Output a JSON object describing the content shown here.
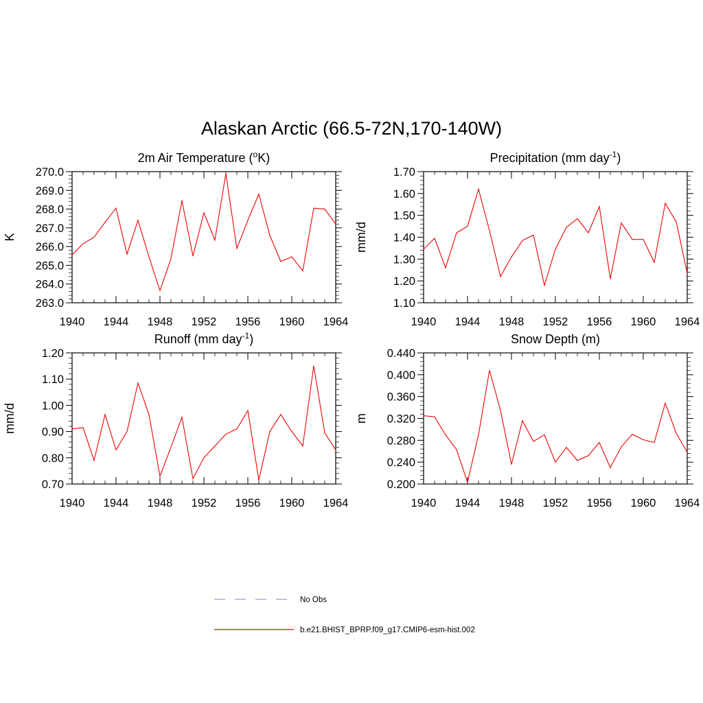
{
  "title": "Alaskan Arctic (66.5-72N,170-140W)",
  "legend": [
    {
      "label": "No Obs",
      "color": "#9999ee",
      "dash": true
    },
    {
      "label": "b.e21.BHIST_BPRP.f09_g17.CMIP6-esm-hist.002",
      "color": "#ee0000",
      "dash": false
    }
  ],
  "line_color": "#ee0000",
  "chart_data": [
    {
      "type": "line",
      "title": "2m Air Temperature (",
      "title_sup": "o",
      "title_tail": "K)",
      "ylabel": "K",
      "xlim": [
        1940,
        1964
      ],
      "ylim": [
        263.0,
        270.0
      ],
      "xticks": [
        1940,
        1944,
        1948,
        1952,
        1956,
        1960,
        1964
      ],
      "yticks": [
        "263.0",
        "264.0",
        "265.0",
        "266.0",
        "267.0",
        "268.0",
        "269.0",
        "270.0"
      ],
      "yminor": 0.2,
      "x": [
        1940,
        1941,
        1942,
        1943,
        1944,
        1945,
        1946,
        1947,
        1948,
        1949,
        1950,
        1951,
        1952,
        1953,
        1954,
        1955,
        1956,
        1957,
        1958,
        1959,
        1960,
        1961,
        1962,
        1963,
        1964
      ],
      "values": [
        265.55,
        266.15,
        266.5,
        267.3,
        268.05,
        265.6,
        267.4,
        265.45,
        263.65,
        265.35,
        268.45,
        265.5,
        267.8,
        266.35,
        269.9,
        265.9,
        267.4,
        268.8,
        266.6,
        265.2,
        265.45,
        264.7,
        268.05,
        268.0,
        267.2
      ]
    },
    {
      "type": "line",
      "title": "Precipitation (mm day",
      "title_sup": "-1",
      "title_tail": ")",
      "ylabel": "mm/d",
      "xlim": [
        1940,
        1964
      ],
      "ylim": [
        1.1,
        1.7
      ],
      "xticks": [
        1940,
        1944,
        1948,
        1952,
        1956,
        1960,
        1964
      ],
      "yticks": [
        "1.10",
        "1.20",
        "1.30",
        "1.40",
        "1.50",
        "1.60",
        "1.70"
      ],
      "yminor": 0.02,
      "x": [
        1940,
        1941,
        1942,
        1943,
        1944,
        1945,
        1946,
        1947,
        1948,
        1949,
        1950,
        1951,
        1952,
        1953,
        1954,
        1955,
        1956,
        1957,
        1958,
        1959,
        1960,
        1961,
        1962,
        1963,
        1964
      ],
      "values": [
        1.345,
        1.395,
        1.26,
        1.42,
        1.45,
        1.62,
        1.43,
        1.22,
        1.31,
        1.385,
        1.41,
        1.18,
        1.345,
        1.445,
        1.485,
        1.42,
        1.54,
        1.21,
        1.465,
        1.39,
        1.39,
        1.285,
        1.555,
        1.47,
        1.235
      ]
    },
    {
      "type": "line",
      "title": "Runoff (mm day",
      "title_sup": "-1",
      "title_tail": ")",
      "ylabel": "mm/d",
      "xlim": [
        1940,
        1964
      ],
      "ylim": [
        0.7,
        1.2
      ],
      "xticks": [
        1940,
        1944,
        1948,
        1952,
        1956,
        1960,
        1964
      ],
      "yticks": [
        "0.70",
        "0.80",
        "0.90",
        "1.00",
        "1.10",
        "1.20"
      ],
      "yminor": 0.02,
      "x": [
        1940,
        1941,
        1942,
        1943,
        1944,
        1945,
        1946,
        1947,
        1948,
        1949,
        1950,
        1951,
        1952,
        1953,
        1954,
        1955,
        1956,
        1957,
        1958,
        1959,
        1960,
        1961,
        1962,
        1963,
        1964
      ],
      "values": [
        0.91,
        0.915,
        0.79,
        0.965,
        0.83,
        0.9,
        1.085,
        0.965,
        0.73,
        0.84,
        0.955,
        0.72,
        0.8,
        0.845,
        0.89,
        0.91,
        0.98,
        0.715,
        0.9,
        0.965,
        0.9,
        0.845,
        1.15,
        0.895,
        0.83
      ]
    },
    {
      "type": "line",
      "title": "Snow Depth (m)",
      "title_sup": "",
      "title_tail": "",
      "ylabel": "m",
      "xlim": [
        1940,
        1964
      ],
      "ylim": [
        0.2,
        0.44
      ],
      "xticks": [
        1940,
        1944,
        1948,
        1952,
        1956,
        1960,
        1964
      ],
      "yticks": [
        "0.200",
        "0.240",
        "0.280",
        "0.320",
        "0.360",
        "0.400",
        "0.440"
      ],
      "yminor": 0.008,
      "x": [
        1940,
        1941,
        1942,
        1943,
        1944,
        1945,
        1946,
        1947,
        1948,
        1949,
        1950,
        1951,
        1952,
        1953,
        1954,
        1955,
        1956,
        1957,
        1958,
        1959,
        1960,
        1961,
        1962,
        1963,
        1964
      ],
      "values": [
        0.325,
        0.323,
        0.29,
        0.263,
        0.203,
        0.29,
        0.408,
        0.335,
        0.236,
        0.316,
        0.278,
        0.29,
        0.24,
        0.267,
        0.243,
        0.252,
        0.276,
        0.23,
        0.268,
        0.291,
        0.281,
        0.276,
        0.348,
        0.293,
        0.258
      ]
    }
  ]
}
